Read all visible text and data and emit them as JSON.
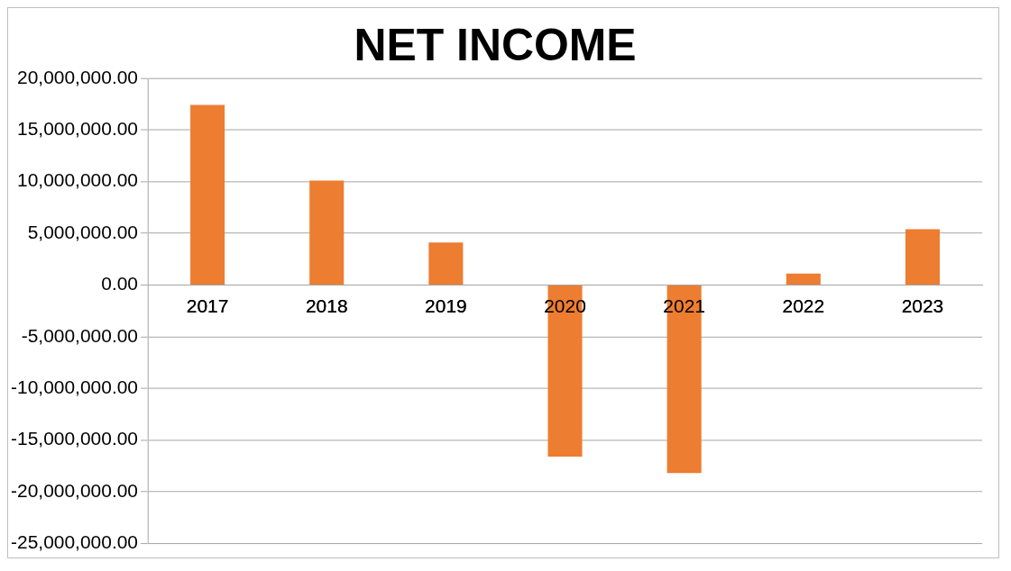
{
  "chart_data": {
    "type": "bar",
    "title": "NET INCOME",
    "categories": [
      "2017",
      "2018",
      "2019",
      "2020",
      "2021",
      "2022",
      "2023"
    ],
    "values": [
      17400000,
      10100000,
      4100000,
      -16600000,
      -18200000,
      1100000,
      5400000
    ],
    "color": "#ed7d31",
    "ylim": [
      -25000000,
      20000000
    ],
    "yticks": [
      {
        "value": -25000000,
        "label": "-25,000,000.00"
      },
      {
        "value": -20000000,
        "label": "-20,000,000.00"
      },
      {
        "value": -15000000,
        "label": "-15,000,000.00"
      },
      {
        "value": -10000000,
        "label": "-10,000,000.00"
      },
      {
        "value": -5000000,
        "label": "-5,000,000.00"
      },
      {
        "value": 0,
        "label": "0.00"
      },
      {
        "value": 5000000,
        "label": "5,000,000.00"
      },
      {
        "value": 10000000,
        "label": "10,000,000.00"
      },
      {
        "value": 15000000,
        "label": "15,000,000.00"
      },
      {
        "value": 20000000,
        "label": "20,000,000.00"
      }
    ],
    "grid": "y",
    "legend": false
  }
}
